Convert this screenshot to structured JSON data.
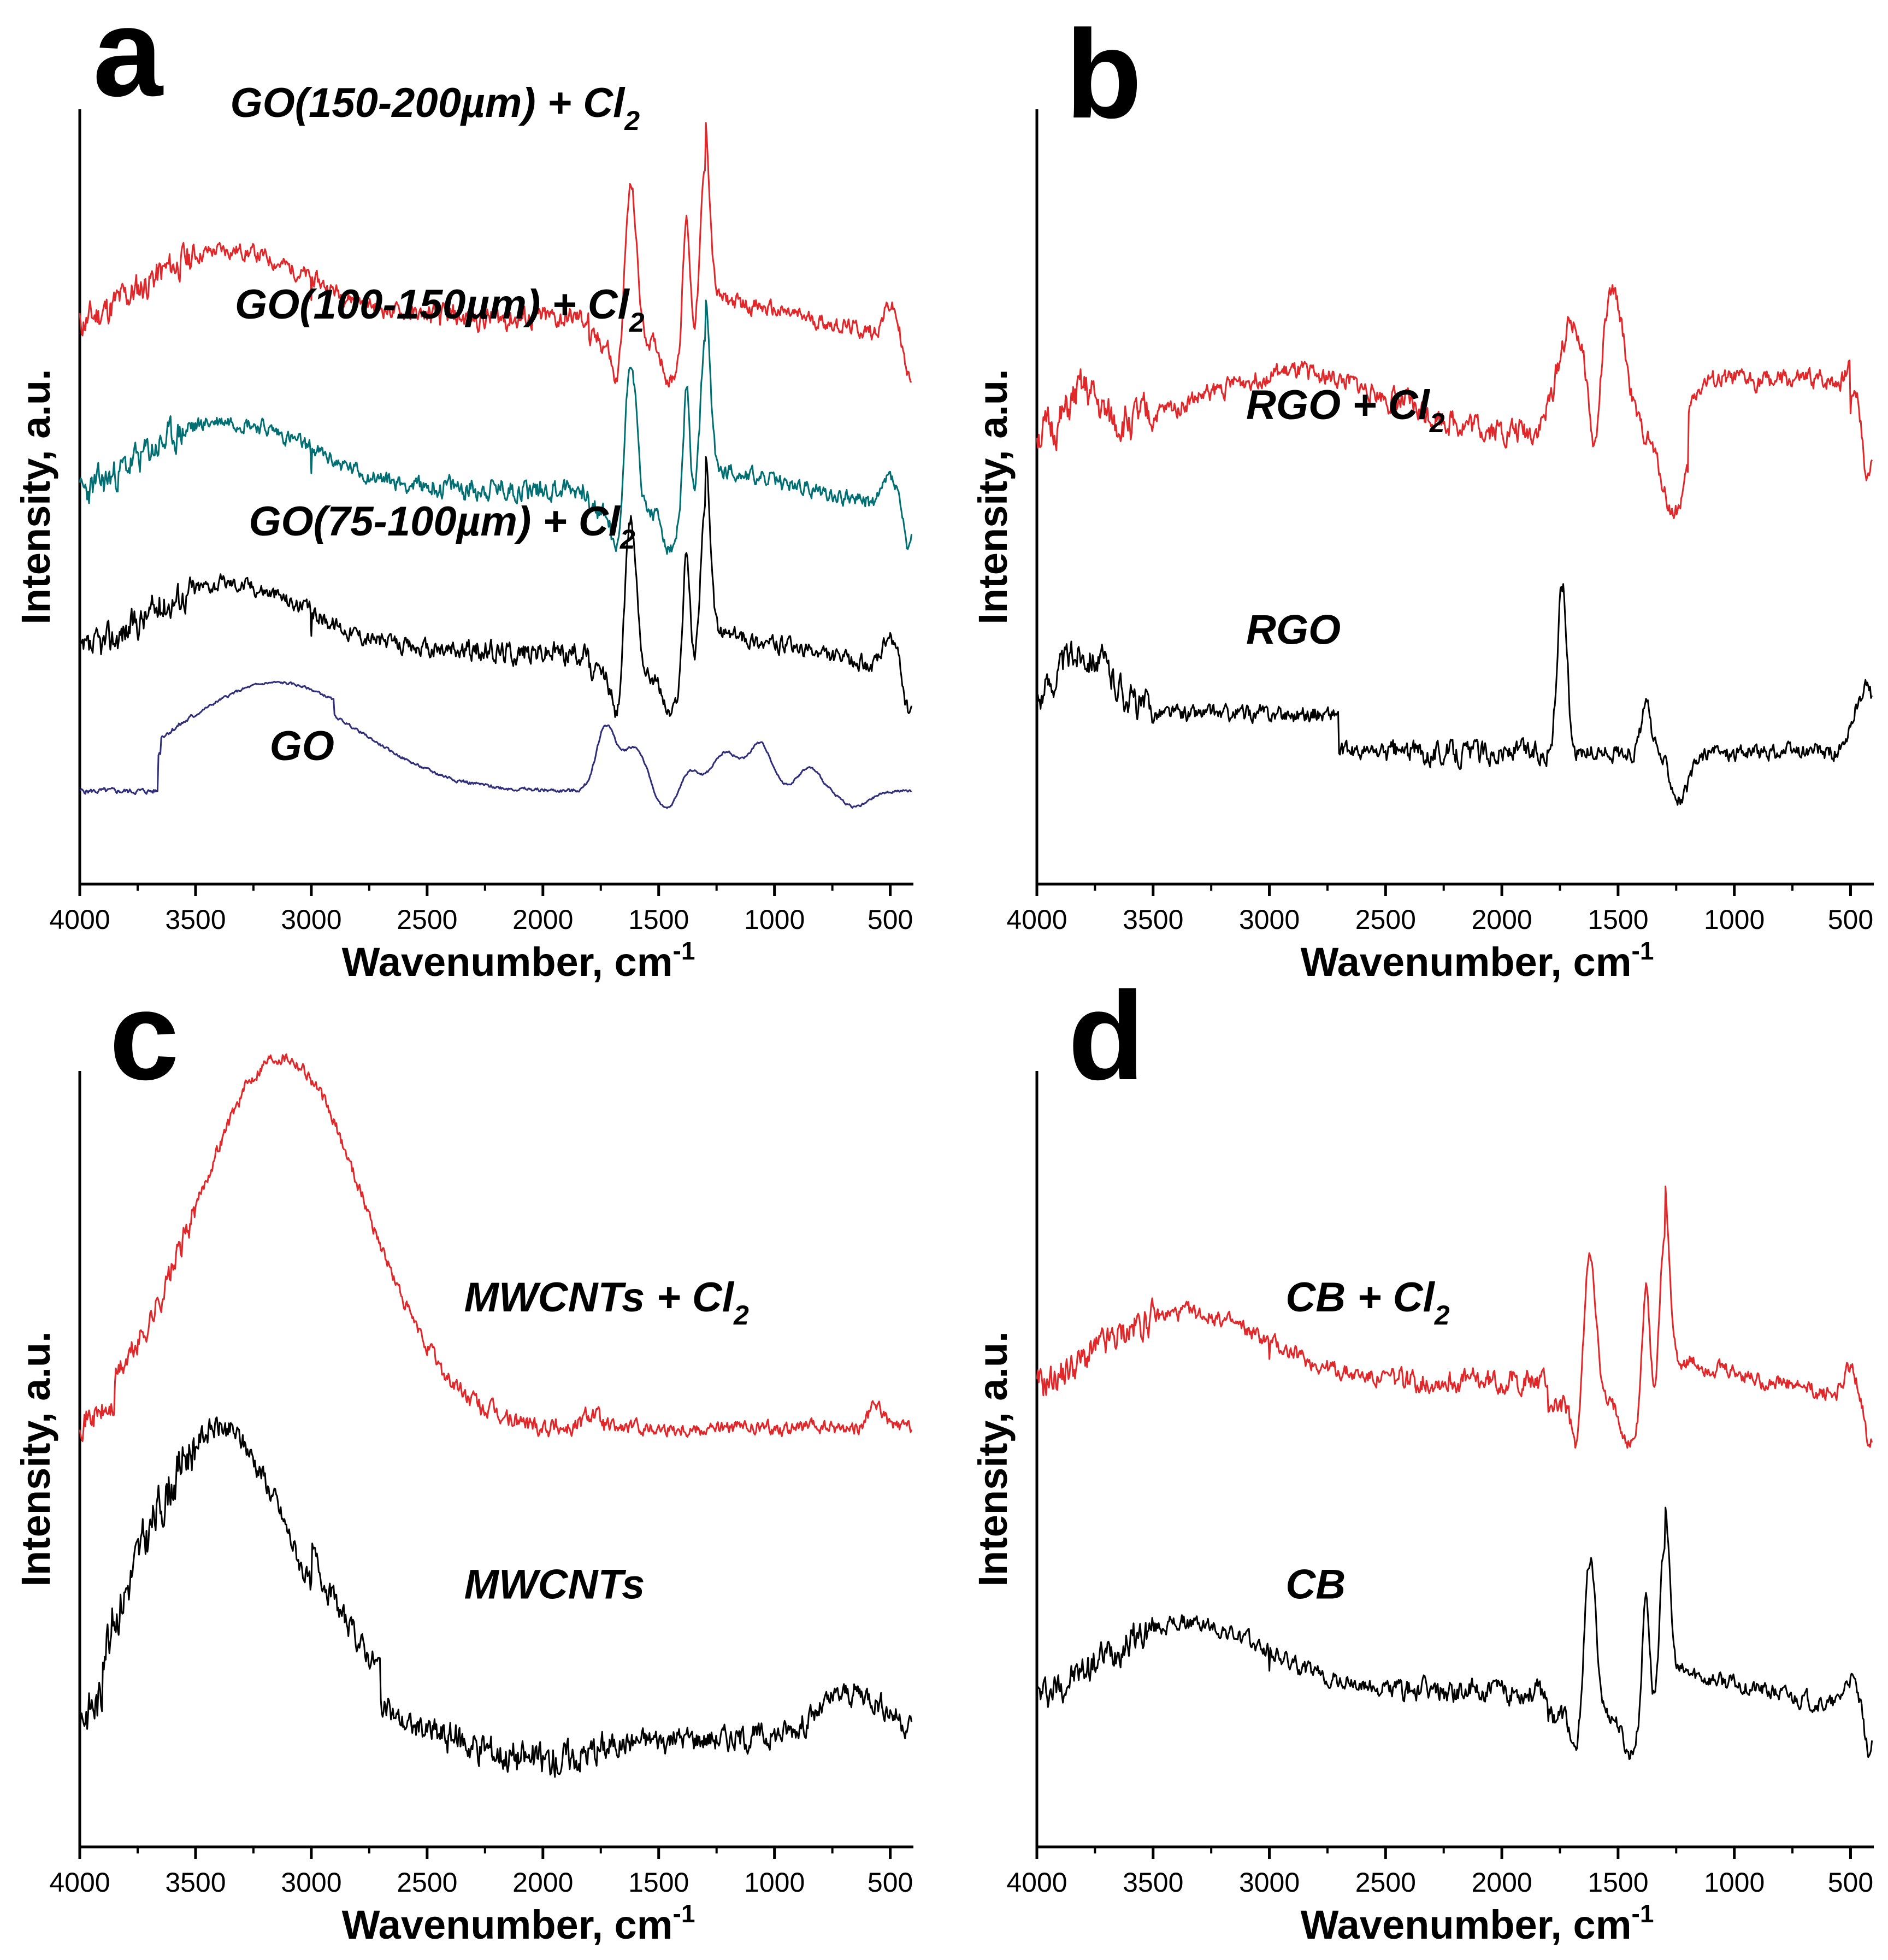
{
  "chart_data": [
    {
      "type": "line",
      "panel": "a",
      "xlabel": "Wavenumber, cm",
      "xlabel_sup": "-1",
      "ylabel": "Intensity, a.u.",
      "xlim": [
        4000,
        400
      ],
      "xticks": [
        4000,
        3500,
        3000,
        2500,
        2000,
        1500,
        1000,
        500
      ],
      "series": [
        {
          "name": "GO(150-200µm) + Cl",
          "label_main": "GO(150-200µm) + Cl",
          "label_sub": "2",
          "color": "#e0272a",
          "offset": 0.58,
          "seed": 11,
          "shape": "go_cl",
          "label_x": 3350,
          "label_level": 0.99,
          "tail_label_level": 0.99
        },
        {
          "name": "GO(100-150µm) + Cl",
          "label_main": "GO(100-150µm) + Cl",
          "label_sub": "2",
          "color": "#006f73",
          "offset": 0.36,
          "seed": 23,
          "shape": "go_cl",
          "label_x": 3330,
          "label_level": 0.73
        },
        {
          "name": "GO(75-100µm) + Cl",
          "label_main": "GO(75-100µm) + Cl",
          "label_sub": "2",
          "color": "#000000",
          "offset": 0.15,
          "seed": 37,
          "shape": "go_cl",
          "label_x": 3270,
          "label_level": 0.45
        },
        {
          "name": "GO",
          "label_main": "GO",
          "label_sub": "",
          "color": "#2e2e7a",
          "offset": 0.0,
          "seed": 5,
          "shape": "go",
          "label_x": 3180,
          "label_level": 0.16
        }
      ]
    },
    {
      "type": "line",
      "panel": "b",
      "xlabel": "Wavenumber, cm",
      "xlabel_sup": "-1",
      "ylabel": "Intensity, a.u.",
      "xlim": [
        4000,
        400
      ],
      "xticks": [
        4000,
        3500,
        3000,
        2500,
        2000,
        1500,
        1000,
        500
      ],
      "series": [
        {
          "name": "RGO + Cl",
          "label_main": "RGO + Cl",
          "label_sub": "2",
          "color": "#e0272a",
          "offset": 0.46,
          "seed": 51,
          "shape": "rgo_cl",
          "label_x": 3100,
          "label_level": 0.6
        },
        {
          "name": "RGO",
          "label_main": "RGO",
          "label_sub": "",
          "color": "#000000",
          "offset": 0.05,
          "seed": 63,
          "shape": "rgo",
          "label_x": 3100,
          "label_level": 0.31
        }
      ]
    },
    {
      "type": "line",
      "panel": "c",
      "xlabel": "Wavenumber, cm",
      "xlabel_sup": "-1",
      "ylabel": "Intensity, a.u.",
      "xlim": [
        4000,
        400
      ],
      "xticks": [
        4000,
        3500,
        3000,
        2500,
        2000,
        1500,
        1000,
        500
      ],
      "series": [
        {
          "name": "MWCNTs + Cl",
          "label_main": "MWCNTs + Cl",
          "label_sub": "2",
          "color": "#e0272a",
          "offset": 0.42,
          "seed": 71,
          "shape": "cnt_cl",
          "label_x": 2340,
          "label_level": 0.69
        },
        {
          "name": "MWCNTs",
          "label_main": "MWCNTs",
          "label_sub": "",
          "color": "#000000",
          "offset": 0.02,
          "seed": 83,
          "shape": "cnt",
          "label_x": 2340,
          "label_level": 0.32
        }
      ]
    },
    {
      "type": "line",
      "panel": "d",
      "xlabel": "Wavenumber, cm",
      "xlabel_sup": "-1",
      "ylabel": "Intensity, a.u.",
      "xlim": [
        4000,
        400
      ],
      "xticks": [
        4000,
        3500,
        3000,
        2500,
        2000,
        1500,
        1000,
        500
      ],
      "series": [
        {
          "name": "CB + Cl",
          "label_main": "CB + Cl",
          "label_sub": "2",
          "color": "#e0272a",
          "offset": 0.45,
          "seed": 91,
          "shape": "go_cl",
          "label_x": 2930,
          "label_level": 0.69
        },
        {
          "name": "CB",
          "label_main": "CB",
          "label_sub": "",
          "color": "#000000",
          "offset": 0.05,
          "seed": 97,
          "shape": "go_cl",
          "label_x": 2930,
          "label_level": 0.32
        }
      ]
    }
  ]
}
